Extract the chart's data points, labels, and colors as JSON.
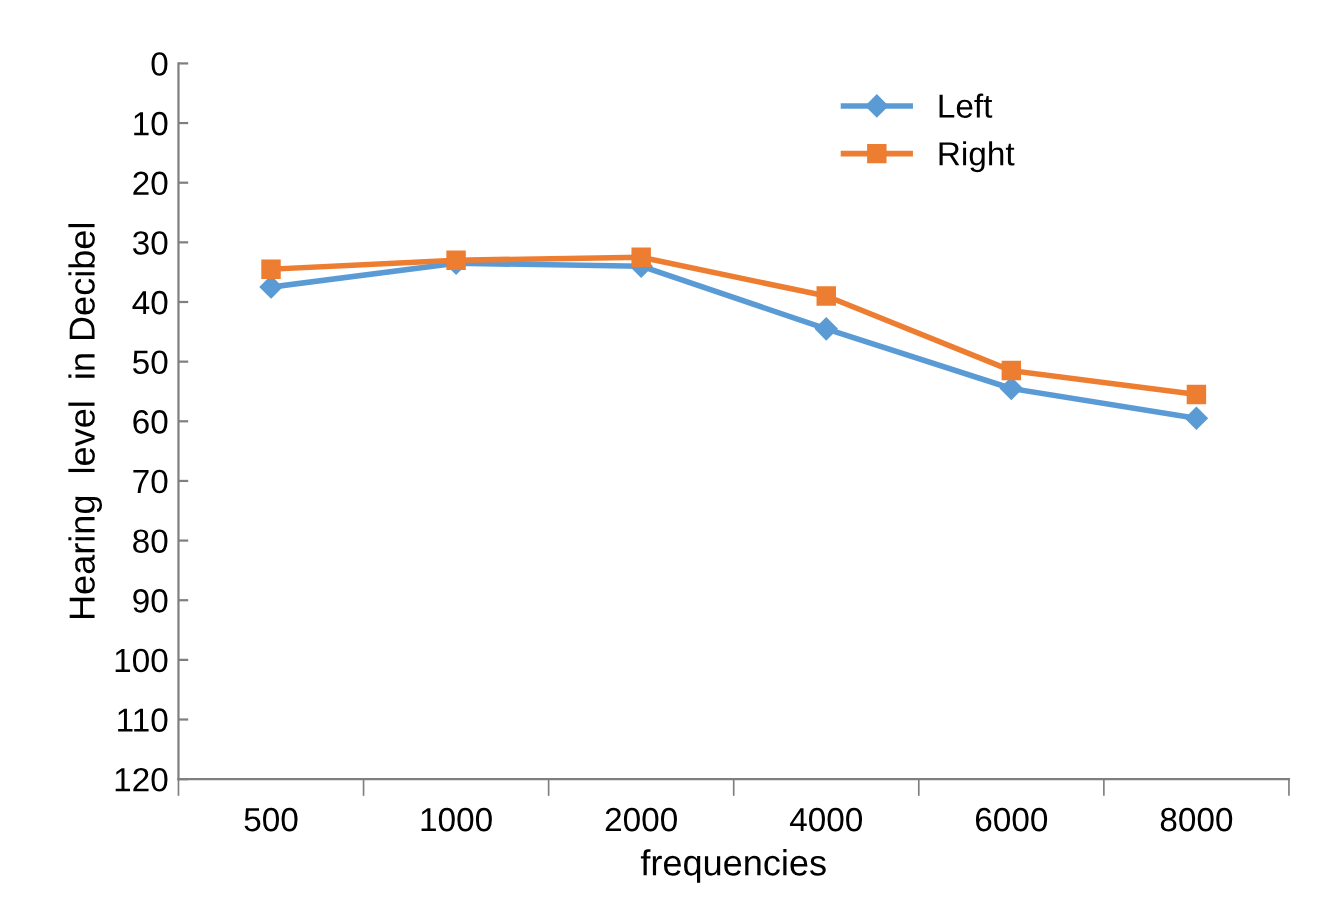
{
  "chart_data": {
    "type": "line",
    "xlabel": "frequencies",
    "ylabel": "Hearing  level  in Decibel",
    "categories": [
      "500",
      "1000",
      "2000",
      "4000",
      "6000",
      "8000"
    ],
    "series": [
      {
        "name": "Left",
        "color": "#5b9bd5",
        "marker": "diamond",
        "values": [
          37.5,
          33.5,
          34,
          44.5,
          54.5,
          59.5
        ]
      },
      {
        "name": "Right",
        "color": "#ed7d31",
        "marker": "square",
        "values": [
          34.5,
          33,
          32.5,
          39,
          51.5,
          55.5
        ]
      }
    ],
    "ylim": [
      120,
      0
    ],
    "yticks": [
      0,
      10,
      20,
      30,
      40,
      50,
      60,
      70,
      80,
      90,
      100,
      110,
      120
    ],
    "grid": false,
    "legend": "top right"
  }
}
